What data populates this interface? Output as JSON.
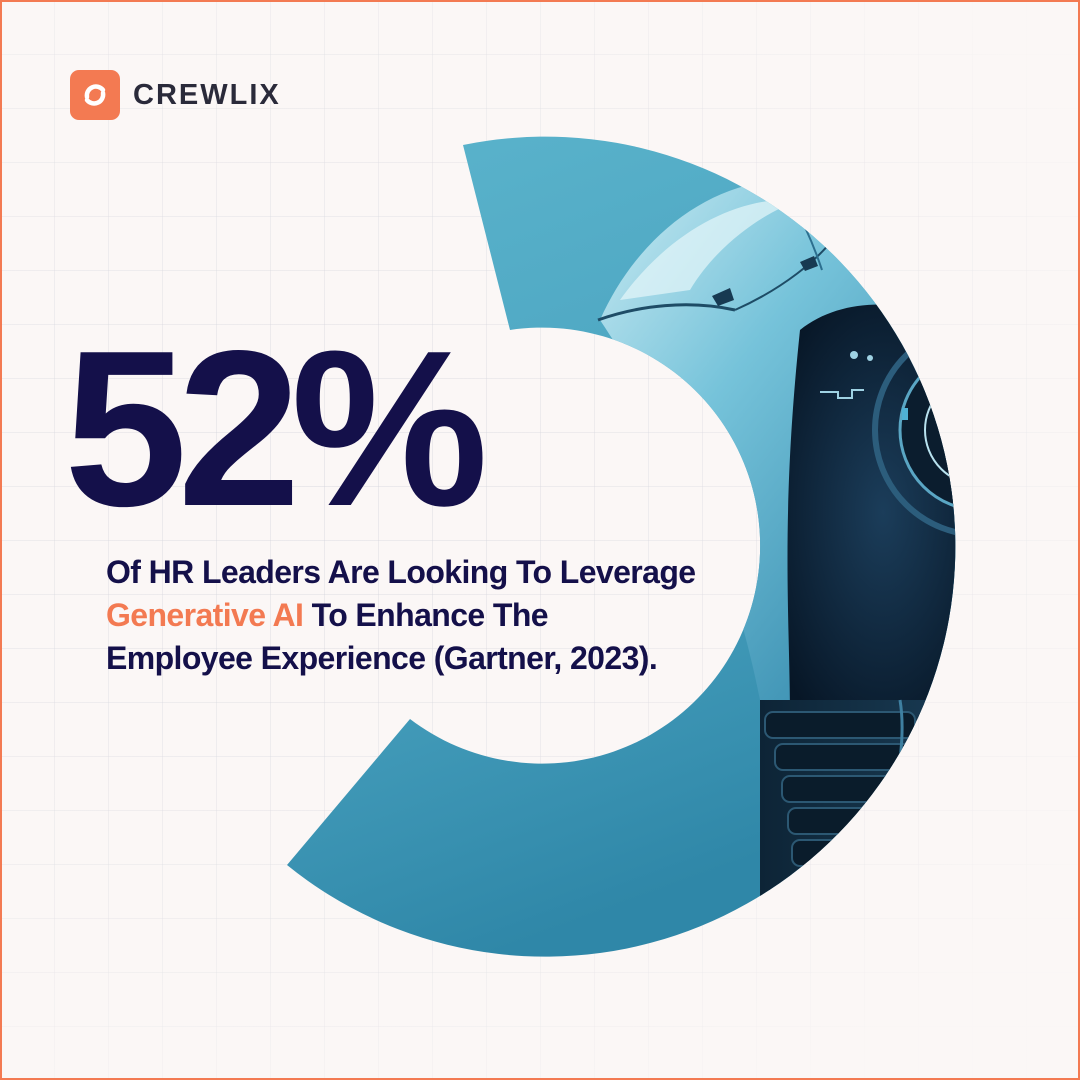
{
  "brand": {
    "name": "CREWLIX",
    "accent_color": "#f37a52",
    "logo_icon": "crewlix-logo-icon"
  },
  "headline": {
    "stat": "52%"
  },
  "caption": {
    "line1": "Of HR Leaders Are Looking To Leverage",
    "line2_highlight": "Generative AI",
    "line2_rest": " To Enhance The",
    "line3": "Employee Experience (Gartner, 2023)."
  },
  "colors": {
    "text_primary": "#14104a",
    "background": "#fbf7f6",
    "ring": "#4fa8c3"
  },
  "illustration": "robot-head-image"
}
